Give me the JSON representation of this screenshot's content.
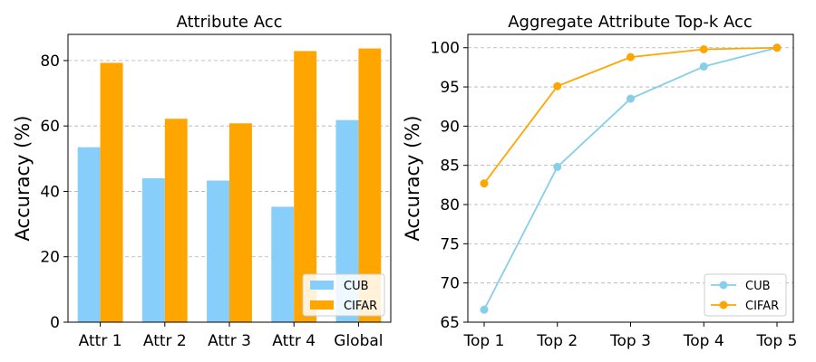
{
  "chart_data": [
    {
      "type": "bar",
      "title": "Attribute Acc",
      "ylabel": "Accuracy (%)",
      "categories": [
        "Attr 1",
        "Attr 2",
        "Attr 3",
        "Attr 4",
        "Global"
      ],
      "ylim": [
        0,
        88
      ],
      "yticks": [
        0,
        20,
        40,
        60,
        80
      ],
      "grid": true,
      "legend": "bottom-right",
      "series": [
        {
          "name": "CUB",
          "color": "#87CEFA",
          "values": [
            53.5,
            44.0,
            43.3,
            35.3,
            61.8
          ]
        },
        {
          "name": "CIFAR",
          "color": "#FFA500",
          "values": [
            79.3,
            62.2,
            60.8,
            82.9,
            83.7
          ]
        }
      ]
    },
    {
      "type": "line",
      "title": "Aggregate Attribute Top-k Acc",
      "ylabel": "Accuracy (%)",
      "categories": [
        "Top 1",
        "Top 2",
        "Top 3",
        "Top 4",
        "Top 5"
      ],
      "ylim": [
        65,
        101.7
      ],
      "yticks": [
        65,
        70,
        75,
        80,
        85,
        90,
        95,
        100
      ],
      "grid": true,
      "legend": "bottom-right",
      "series": [
        {
          "name": "CUB",
          "color": "#87CEEB",
          "values": [
            66.6,
            84.8,
            93.5,
            97.6,
            100.0
          ]
        },
        {
          "name": "CIFAR",
          "color": "#FFA500",
          "values": [
            82.7,
            95.1,
            98.8,
            99.8,
            100.0
          ]
        }
      ]
    }
  ]
}
